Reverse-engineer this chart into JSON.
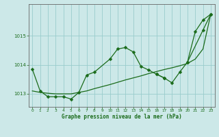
{
  "title": "Graphe pression niveau de la mer (hPa)",
  "background_color": "#cce8e8",
  "plot_bg_color": "#cce8e8",
  "grid_color": "#99cccc",
  "line_color": "#1a6b1a",
  "xlim": [
    -0.5,
    23.5
  ],
  "ylim": [
    1012.55,
    1016.1
  ],
  "yticks": [
    1013,
    1014,
    1015
  ],
  "xticks": [
    0,
    1,
    2,
    3,
    4,
    5,
    6,
    7,
    8,
    9,
    10,
    11,
    12,
    13,
    14,
    15,
    16,
    17,
    18,
    19,
    20,
    21,
    22,
    23
  ],
  "series1_x": [
    0,
    1,
    2,
    3,
    4,
    5,
    6,
    7,
    8,
    10,
    11,
    12,
    13,
    14,
    15,
    16,
    17
  ],
  "series1_y": [
    1013.85,
    1013.1,
    1012.9,
    1012.9,
    1012.9,
    1012.82,
    1013.05,
    1013.65,
    1013.75,
    1014.2,
    1014.55,
    1014.6,
    1014.45,
    1013.95,
    1013.82,
    1013.68,
    1013.55
  ],
  "series2_x": [
    0,
    1,
    2,
    3,
    4,
    5,
    6,
    7,
    8,
    9,
    10,
    11,
    12,
    13,
    14,
    15,
    16,
    17,
    18,
    19,
    20,
    21,
    22,
    23
  ],
  "series2_y": [
    1013.1,
    1013.05,
    1013.02,
    1013.0,
    1013.0,
    1013.0,
    1013.05,
    1013.1,
    1013.18,
    1013.25,
    1013.32,
    1013.4,
    1013.48,
    1013.55,
    1013.62,
    1013.7,
    1013.77,
    1013.84,
    1013.9,
    1013.97,
    1014.05,
    1014.2,
    1014.55,
    1015.75
  ],
  "series3_x": [
    16,
    17,
    18,
    19,
    20,
    22,
    23
  ],
  "series3_y": [
    1013.68,
    1013.55,
    1013.38,
    1013.75,
    1014.1,
    1015.2,
    1015.75
  ],
  "series4_x": [
    20,
    21,
    22,
    23
  ],
  "series4_y": [
    1014.1,
    1015.15,
    1015.55,
    1015.75
  ],
  "marker": "D",
  "markersize": 2.5,
  "linewidth": 0.9
}
